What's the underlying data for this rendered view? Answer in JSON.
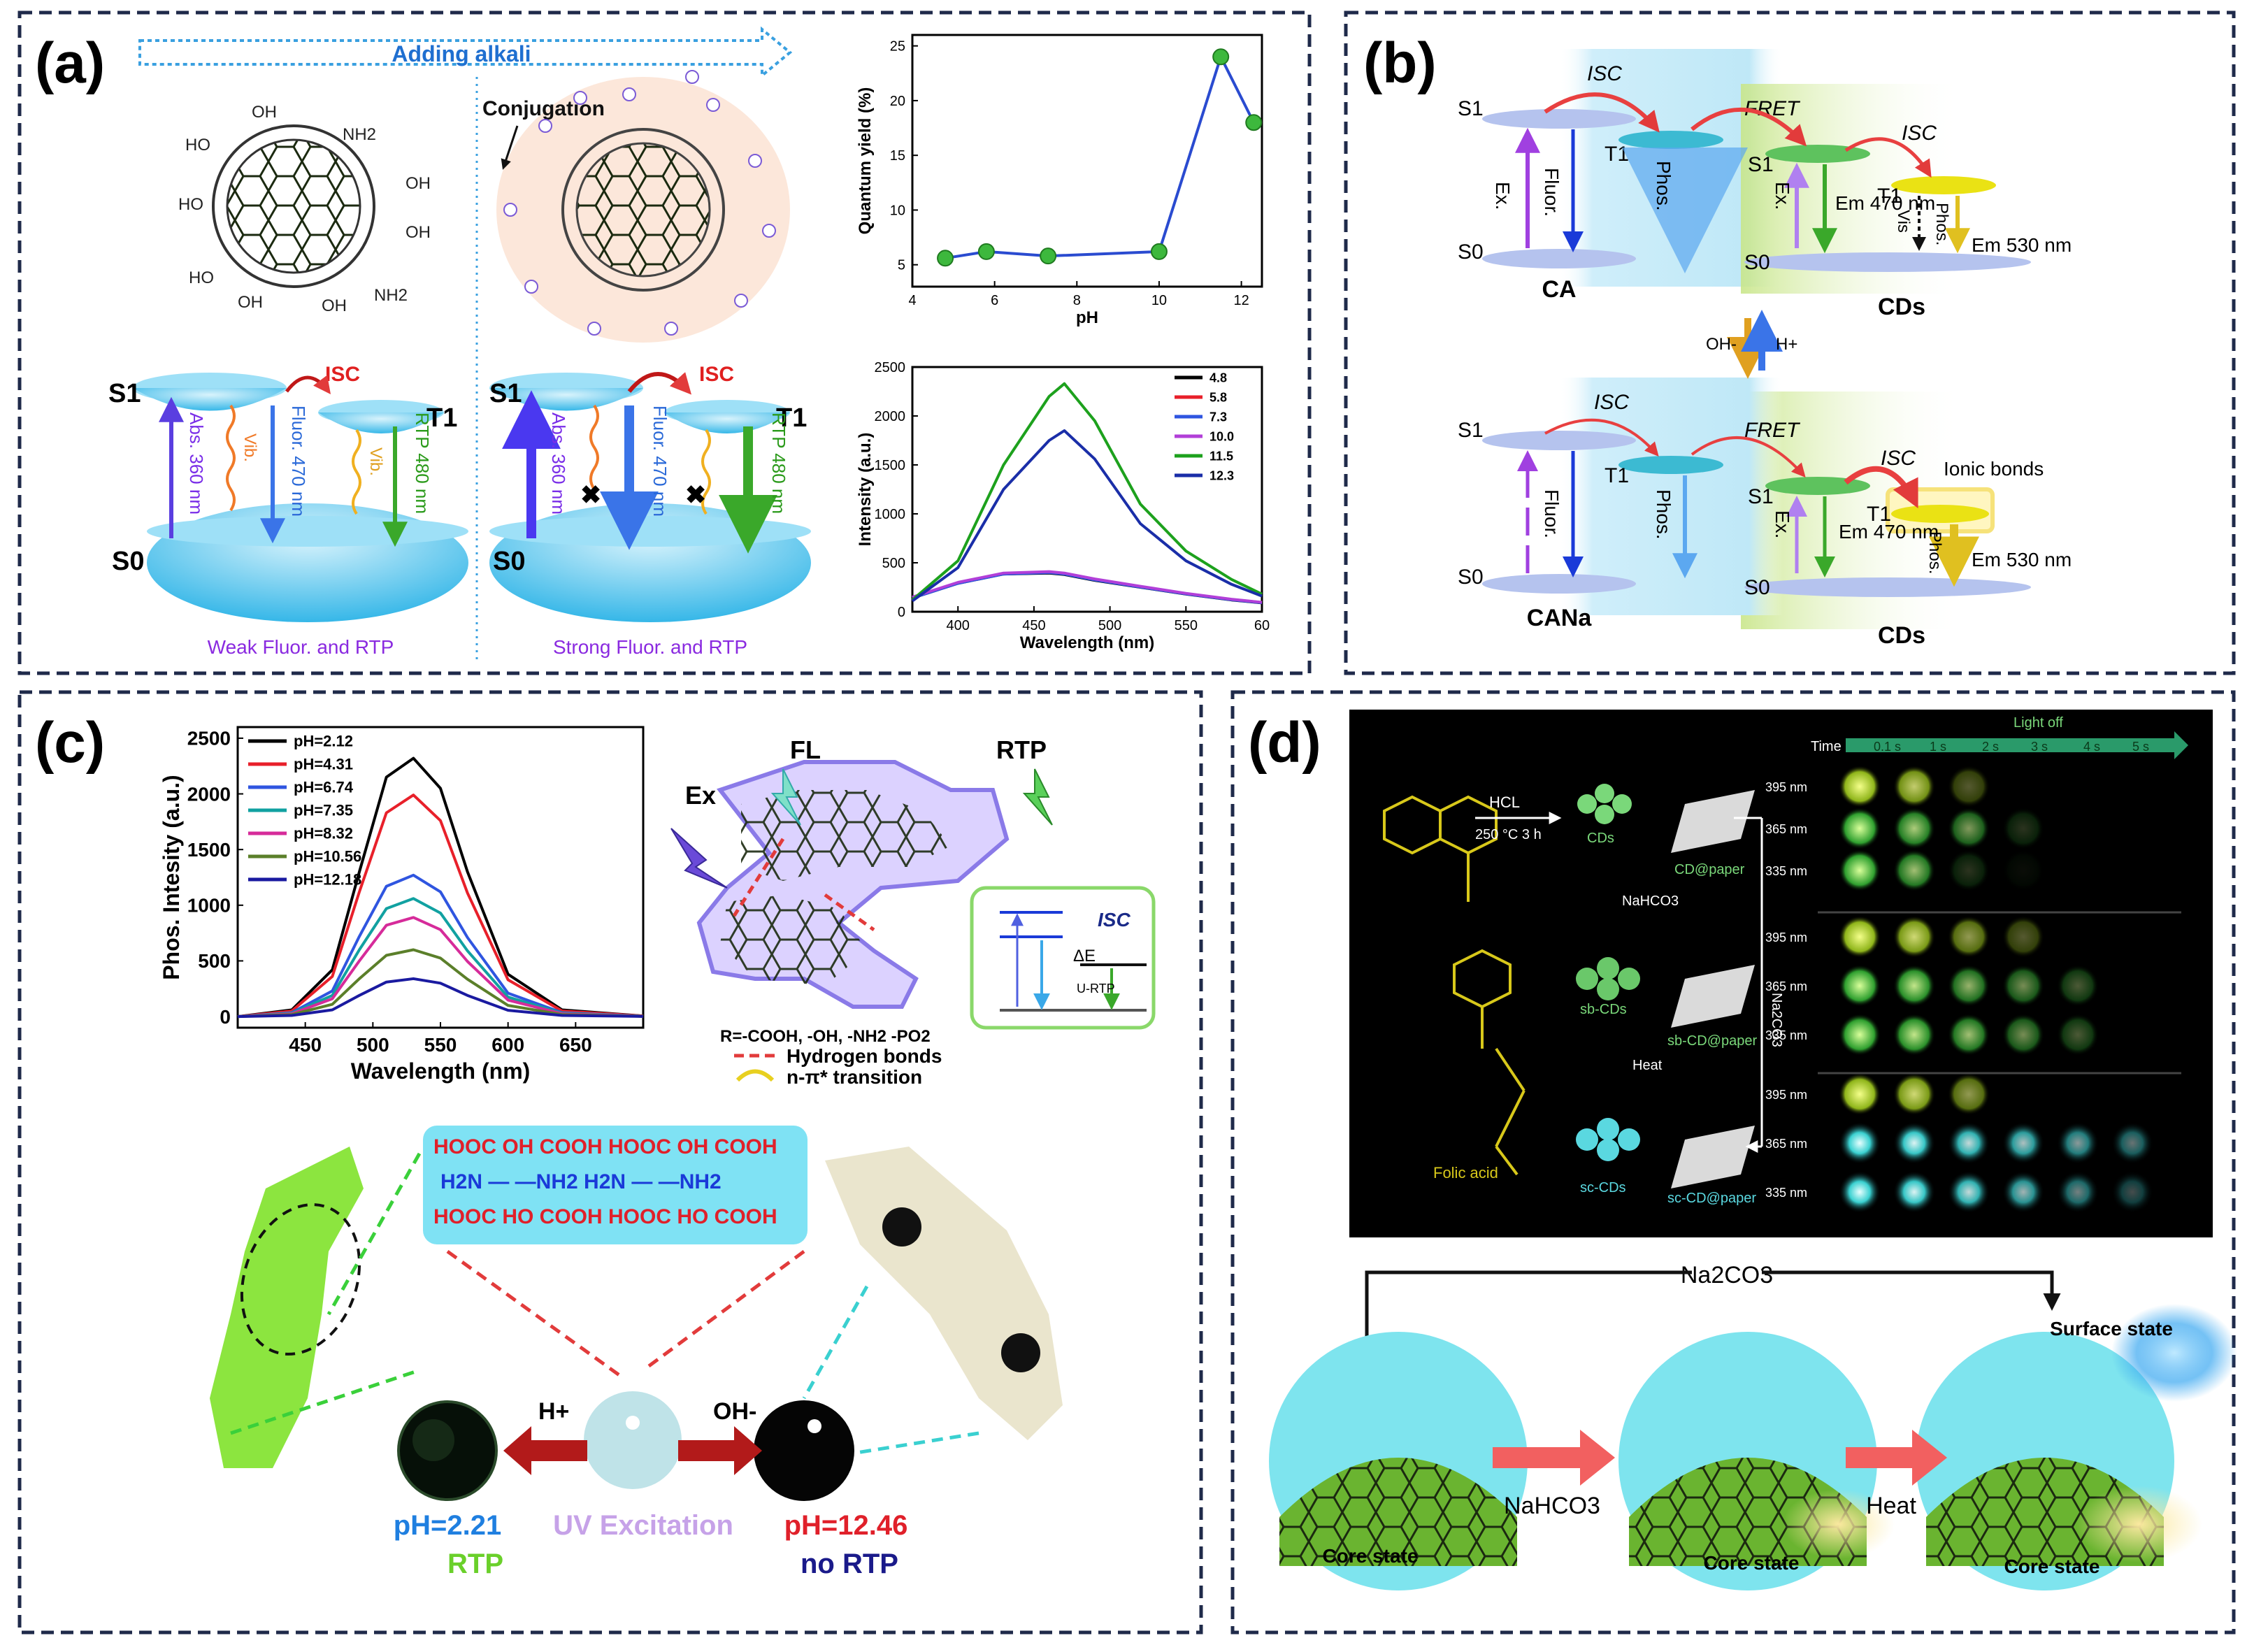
{
  "panel_a": {
    "label": "(a)",
    "arrow_text": "Adding alkali",
    "conjugation": "Conjugation",
    "left_group_labels": [
      "OH",
      "NH2",
      "OH",
      "HO",
      "OH",
      "HO",
      "OH",
      "NH2",
      "OH",
      "HO"
    ],
    "levels": {
      "S1": "S1",
      "T1": "T1",
      "S0": "S0",
      "ISC": "ISC"
    },
    "arrows": {
      "abs": "Abs. 360 nm",
      "vib": "Vib.",
      "fluor": "Fluor. 470 nm",
      "rtp": "RTP 480 nm"
    },
    "caption_left": "Weak Fluor. and RTP",
    "caption_right": "Strong Fluor. and RTP"
  },
  "panel_b": {
    "label": "(b)",
    "levels": {
      "S1": "S1",
      "T1": "T1",
      "S0": "S0"
    },
    "terms": {
      "ISC": "ISC",
      "FRET": "FRET",
      "Ex": "Ex.",
      "Fluor": "Fluor.",
      "Phos": "Phos.",
      "Vis": "Vis",
      "Em470": "Em 470 nm",
      "Em530": "Em 530 nm",
      "ionic": "Ionic bonds"
    },
    "top_left": "CA",
    "top_right": "CDs",
    "bottom_left": "CANa",
    "bottom_right": "CDs",
    "switch_left": "OH-",
    "switch_right": "H+"
  },
  "panel_c": {
    "label": "(c)",
    "legend_note": "R=-COOH, -OH, -NH2 -PO2",
    "hydrogen_bonds": "Hydrogen bonds",
    "transition": "n-π* transition",
    "fl": "FL",
    "rtp": "RTP",
    "ex": "Ex",
    "isc": "ISC",
    "delta_e": "ΔE",
    "u_rtp": "U-RTP",
    "h_plus": "H+",
    "oh_minus": "OH-",
    "ph_left": "pH=2.21",
    "rtp_label": "RTP",
    "uv": "UV Excitation",
    "ph_right": "pH=12.46",
    "no_rtp": "no RTP",
    "molecule_rows": [
      "HOOC   OH   COOH  HOOC   OH    COOH",
      "H2N  —   —NH2 H2N  —   —NH2",
      "HOOC   HO   COOH  HOOC   HO    COOH"
    ]
  },
  "panel_d": {
    "label": "(d)",
    "light_off": "Light off",
    "time_label": "Time",
    "times": [
      "0.1 s",
      "1 s",
      "2 s",
      "3 s",
      "4 s",
      "5 s"
    ],
    "wavelengths": [
      "395 nm",
      "365 nm",
      "335 nm"
    ],
    "hcl": "HCL",
    "conditions": "250 °C 3 h",
    "cds": "CDs",
    "cd_paper": "CD@paper",
    "nahco3": "NaHCO3",
    "sb_cds": "sb-CDs",
    "sb_paper": "sb-CD@paper",
    "heat": "Heat",
    "sc_cds": "sc-CDs",
    "sc_paper": "sc-CD@paper",
    "na2co3_side": "Na2CO3",
    "folic": "Folic acid",
    "na2co3_top": "Na2CO3",
    "nahco3_arrow": "NaHCO3",
    "heat_arrow": "Heat",
    "core_state": "Core state",
    "surface_state": "Surface state"
  },
  "chart_data": [
    {
      "type": "line",
      "title": "",
      "xlabel": "pH",
      "ylabel": "Quantum yield (%)",
      "x": [
        4.8,
        5.8,
        7.3,
        10.0,
        11.5,
        12.3
      ],
      "values": [
        5.6,
        6.2,
        5.8,
        6.2,
        24.0,
        18.0
      ],
      "xlim": [
        4,
        12.5
      ],
      "ylim": [
        3,
        26
      ],
      "xticks": [
        "4",
        "6",
        "8",
        "10",
        "12"
      ],
      "yticks": [
        "5",
        "10",
        "15",
        "20",
        "25"
      ],
      "color": "#2a4bd0"
    },
    {
      "type": "line",
      "title": "",
      "xlabel": "Wavelength (nm)",
      "ylabel": "Intensity (a.u.)",
      "xlim": [
        370,
        600
      ],
      "ylim": [
        0,
        2500
      ],
      "xticks": [
        "400",
        "450",
        "500",
        "550",
        "60"
      ],
      "yticks": [
        "0",
        "500",
        "1000",
        "1500",
        "2000",
        "2500"
      ],
      "x": [
        370,
        400,
        430,
        460,
        470,
        490,
        520,
        550,
        580,
        600
      ],
      "series": [
        {
          "name": "4.8",
          "color": "#000000",
          "values": [
            140,
            290,
            385,
            395,
            380,
            320,
            250,
            180,
            120,
            90
          ]
        },
        {
          "name": "5.8",
          "color": "#e8202a",
          "values": [
            145,
            295,
            390,
            405,
            390,
            330,
            255,
            185,
            125,
            95
          ]
        },
        {
          "name": "7.3",
          "color": "#2f55e0",
          "values": [
            140,
            290,
            385,
            400,
            385,
            325,
            252,
            182,
            122,
            92
          ]
        },
        {
          "name": "10.0",
          "color": "#b23fd8",
          "values": [
            150,
            300,
            395,
            410,
            395,
            335,
            260,
            188,
            128,
            96
          ]
        },
        {
          "name": "11.5",
          "color": "#1da11d",
          "values": [
            120,
            520,
            1500,
            2200,
            2330,
            1950,
            1100,
            620,
            330,
            180
          ]
        },
        {
          "name": "12.3",
          "color": "#1a2ea8",
          "values": [
            110,
            450,
            1250,
            1750,
            1850,
            1560,
            900,
            520,
            280,
            160
          ]
        }
      ]
    },
    {
      "type": "line",
      "title": "",
      "xlabel": "Wavelength (nm)",
      "ylabel": "Phos. Intesity (a.u.)",
      "xlim": [
        400,
        700
      ],
      "ylim": [
        -100,
        2600
      ],
      "xticks": [
        "450",
        "500",
        "550",
        "600",
        "650"
      ],
      "yticks": [
        "0",
        "500",
        "1000",
        "1500",
        "2000",
        "2500"
      ],
      "x": [
        400,
        440,
        470,
        490,
        510,
        530,
        550,
        570,
        600,
        640,
        700
      ],
      "series": [
        {
          "name": "pH=2.12",
          "color": "#000000",
          "values": [
            0,
            60,
            420,
            1300,
            2150,
            2320,
            2050,
            1300,
            380,
            60,
            5
          ]
        },
        {
          "name": "pH=4.31",
          "color": "#e8202a",
          "values": [
            0,
            50,
            360,
            1120,
            1830,
            1990,
            1760,
            1110,
            330,
            50,
            5
          ]
        },
        {
          "name": "pH=6.74",
          "color": "#2f55e0",
          "values": [
            0,
            35,
            230,
            720,
            1170,
            1270,
            1120,
            710,
            210,
            35,
            3
          ]
        },
        {
          "name": "pH=7.35",
          "color": "#11a1a1",
          "values": [
            0,
            30,
            190,
            600,
            970,
            1060,
            930,
            590,
            175,
            30,
            3
          ]
        },
        {
          "name": "pH=8.32",
          "color": "#d62b9a",
          "values": [
            0,
            25,
            160,
            500,
            820,
            890,
            780,
            495,
            148,
            25,
            2
          ]
        },
        {
          "name": "pH=10.56",
          "color": "#5b7f2a",
          "values": [
            0,
            18,
            110,
            340,
            550,
            600,
            525,
            335,
            100,
            18,
            2
          ]
        },
        {
          "name": "pH=12.18",
          "color": "#1a1aa0",
          "values": [
            0,
            10,
            60,
            190,
            310,
            340,
            300,
            190,
            56,
            10,
            1
          ]
        }
      ]
    }
  ]
}
